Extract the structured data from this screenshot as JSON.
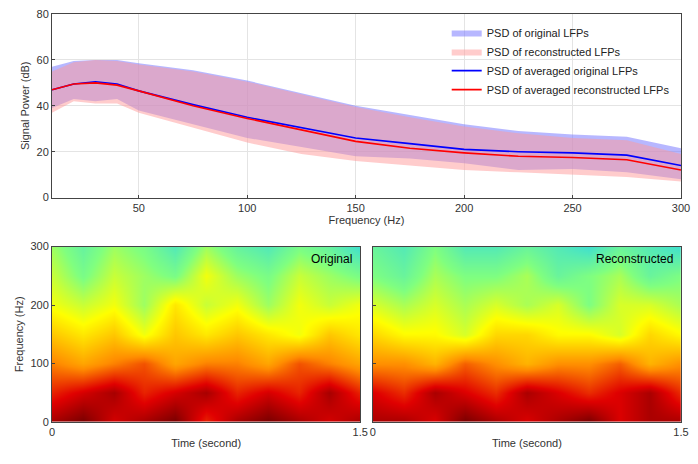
{
  "chart_data": [
    {
      "type": "line",
      "xlabel": "Frequency (Hz)",
      "ylabel": "Signal Power (dB)",
      "xlim": [
        10,
        300
      ],
      "xticks": [
        50,
        100,
        150,
        200,
        250,
        300
      ],
      "ylim": [
        0,
        80
      ],
      "yticks": [
        0,
        20,
        40,
        60,
        80
      ],
      "grid": true,
      "legend": "top right",
      "x": [
        10,
        20,
        30,
        40,
        50,
        75,
        100,
        125,
        150,
        175,
        200,
        225,
        250,
        275,
        300
      ],
      "series": [
        {
          "name": "PSD of original LFPs",
          "type": "band",
          "color": "#6f6fff",
          "upper": [
            57,
            59.5,
            60,
            60,
            58.5,
            55.5,
            51,
            45.5,
            40,
            36,
            32,
            29,
            27.5,
            26.5,
            21.5
          ],
          "lower": [
            39,
            43,
            42,
            43,
            38,
            32,
            26,
            22,
            18,
            17,
            15,
            12,
            12.5,
            11,
            8
          ]
        },
        {
          "name": "PSD of reconstructed LFPs",
          "type": "band",
          "color": "#ff9a9a",
          "upper": [
            55,
            59,
            60,
            59.5,
            58,
            55,
            50.5,
            45,
            39.5,
            35,
            31,
            28,
            26,
            25,
            19
          ],
          "lower": [
            37,
            42,
            41,
            41,
            37,
            30.5,
            24,
            19,
            16,
            14,
            12,
            11,
            10,
            9,
            7
          ]
        },
        {
          "name": "PSD of averaged original LFPs",
          "type": "line",
          "color": "#0000ff",
          "values": [
            47,
            49.5,
            50.5,
            49.5,
            46.5,
            40.5,
            35,
            30.5,
            26,
            23.5,
            21,
            20,
            19.5,
            18.5,
            14
          ]
        },
        {
          "name": "PSD of averaged reconstructed LFPs",
          "type": "line",
          "color": "#ff0000",
          "values": [
            47,
            49.5,
            50,
            49,
            46.5,
            40,
            34.5,
            29.5,
            24.5,
            21.5,
            19.5,
            18,
            17.5,
            16.5,
            12
          ]
        }
      ]
    },
    {
      "type": "heatmap",
      "annotation": "Original",
      "xlabel": "Time (second)",
      "ylabel": "Frequency (Hz)",
      "xlim": [
        0,
        1.5
      ],
      "xticks": [
        0,
        1.5
      ],
      "ylim": [
        0,
        300
      ],
      "yticks": [
        0,
        100,
        200,
        300
      ],
      "grid": false,
      "x": [
        0,
        0.15,
        0.3,
        0.45,
        0.6,
        0.75,
        0.9,
        1.05,
        1.2,
        1.35,
        1.5
      ],
      "y": [
        0,
        50,
        100,
        150,
        200,
        250,
        300
      ],
      "z": [
        [
          9,
          9.5,
          8.5,
          9,
          9.5,
          8,
          9,
          9.5,
          9,
          8.5,
          9
        ],
        [
          8,
          8.5,
          9,
          8,
          8.5,
          9,
          8,
          8.5,
          8,
          9,
          8
        ],
        [
          7,
          6.5,
          7,
          7.5,
          6.5,
          7,
          7,
          6.5,
          7.5,
          7,
          6.5
        ],
        [
          6,
          5.5,
          6,
          5,
          6,
          5.5,
          6,
          5.5,
          5,
          6,
          5.5
        ],
        [
          5,
          4.5,
          5,
          4,
          5.5,
          4.5,
          5,
          4,
          5,
          4.5,
          5
        ],
        [
          4.5,
          3.5,
          4.5,
          4,
          3.5,
          5,
          4,
          3.5,
          4.5,
          4,
          3.5
        ],
        [
          4,
          3,
          4,
          3.5,
          2.5,
          4,
          3,
          2.5,
          3.5,
          3,
          2
        ]
      ]
    },
    {
      "type": "heatmap",
      "annotation": "Reconstructed",
      "xlabel": "Time (second)",
      "tick_labels": "x",
      "xlim": [
        0,
        1.5
      ],
      "xticks": [
        0,
        1.5
      ],
      "ylim": [
        0,
        300
      ],
      "yticks": [
        0,
        100,
        200,
        300
      ],
      "grid": false,
      "x": [
        0,
        0.15,
        0.3,
        0.45,
        0.6,
        0.75,
        0.9,
        1.05,
        1.2,
        1.35,
        1.5
      ],
      "y": [
        0,
        50,
        100,
        150,
        200,
        250,
        300
      ],
      "z": [
        [
          9,
          9,
          8.5,
          9.5,
          9,
          8.5,
          9,
          9.5,
          8.5,
          9,
          9
        ],
        [
          8.5,
          8,
          9,
          8.5,
          8,
          9,
          8.5,
          8,
          8.5,
          9,
          8
        ],
        [
          7,
          7,
          6.5,
          7.5,
          7,
          6.5,
          7,
          7,
          7.5,
          6.5,
          7
        ],
        [
          6,
          5.5,
          5.5,
          5,
          6,
          6,
          5.5,
          5.5,
          5,
          6,
          5.5
        ],
        [
          5,
          4.5,
          5,
          4.5,
          5,
          4.5,
          5,
          4,
          5,
          5,
          4.5
        ],
        [
          4,
          3.5,
          4.5,
          4,
          4,
          4.5,
          3.5,
          4,
          4.5,
          3.5,
          4
        ],
        [
          3.5,
          3,
          4,
          3,
          3,
          3.5,
          3,
          2.5,
          3.5,
          3,
          2.5
        ]
      ]
    }
  ]
}
